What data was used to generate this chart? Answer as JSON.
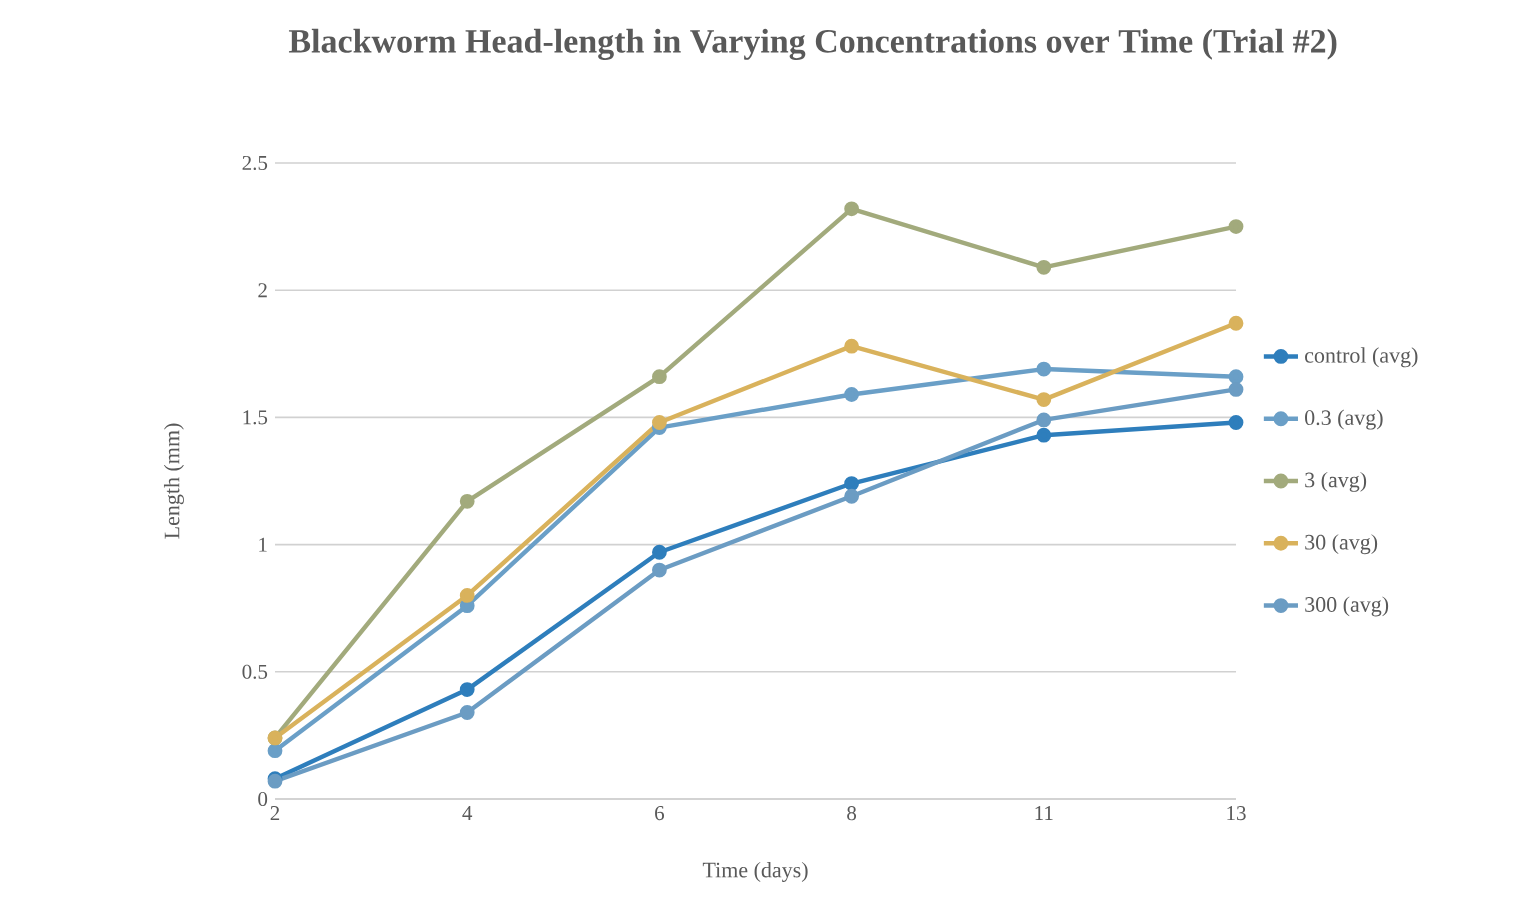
{
  "chart_data": {
    "type": "line",
    "title": "Blackworm Head-length in Varying Concentrations over Time (Trial #2)",
    "xlabel": "Time (days)",
    "ylabel": "Length (mm)",
    "categories": [
      "2",
      "4",
      "6",
      "8",
      "11",
      "13"
    ],
    "series": [
      {
        "name": "control (avg)",
        "color": "#2e7ebc",
        "values": [
          0.08,
          0.43,
          0.97,
          1.24,
          1.43,
          1.48
        ]
      },
      {
        "name": "0.3 (avg)",
        "color": "#6a9fc7",
        "values": [
          0.19,
          0.76,
          1.46,
          1.59,
          1.69,
          1.66
        ]
      },
      {
        "name": "3 (avg)",
        "color": "#a2aa7c",
        "values": [
          0.24,
          1.17,
          1.66,
          2.32,
          2.09,
          2.25
        ]
      },
      {
        "name": "30 (avg)",
        "color": "#d9b25c",
        "values": [
          0.24,
          0.8,
          1.48,
          1.78,
          1.57,
          1.87
        ]
      },
      {
        "name": "300 (avg)",
        "color": "#6b9cc3",
        "values": [
          0.07,
          0.34,
          0.9,
          1.19,
          1.49,
          1.61
        ]
      }
    ],
    "ylim": [
      0,
      2.5
    ],
    "yticks": [
      0,
      0.5,
      1,
      1.5,
      2,
      2.5
    ],
    "grid": "y",
    "legend": "right",
    "marker": "circle",
    "line_style": "solid"
  }
}
